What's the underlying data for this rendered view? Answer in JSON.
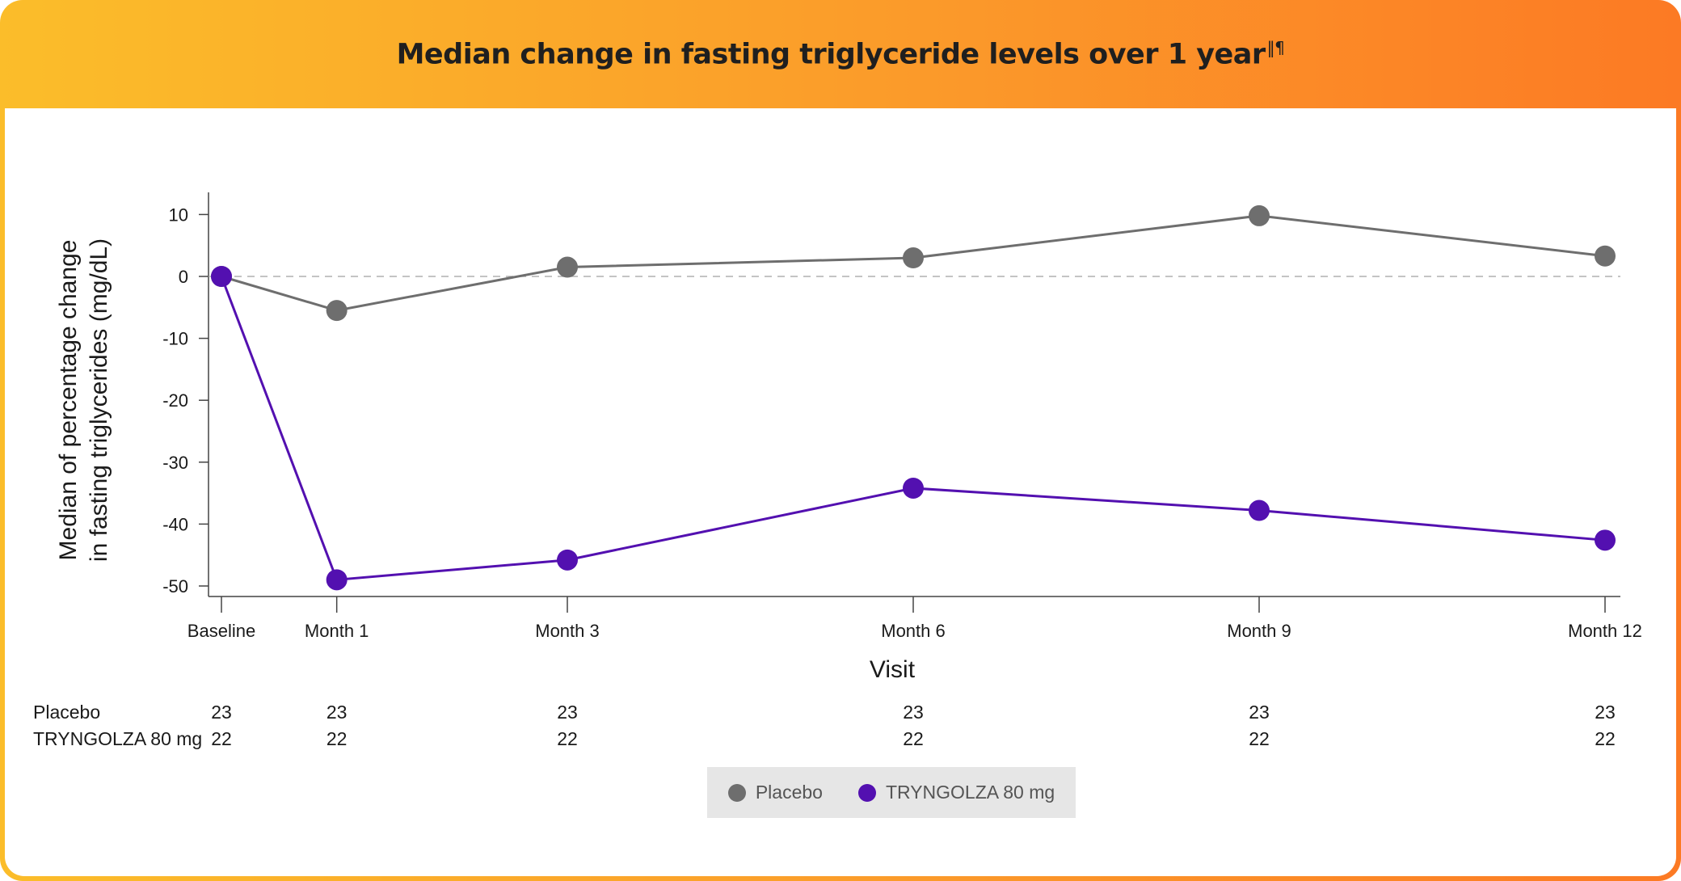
{
  "header": {
    "title": "Median change in fasting triglyceride levels over 1 year",
    "footnote_marks": "‖¶"
  },
  "colors": {
    "placebo": "#6e6e6e",
    "treatment": "#5310b0"
  },
  "chart_data": {
    "type": "line",
    "categories": [
      "Baseline",
      "Month 1",
      "Month 3",
      "Month 6",
      "Month 9",
      "Month 12"
    ],
    "x": [
      0,
      1,
      3,
      6,
      9,
      12
    ],
    "series": [
      {
        "name": "Placebo",
        "values": [
          0,
          -5.5,
          1.5,
          3,
          9.8,
          3.3
        ]
      },
      {
        "name": "TRYNGOLZA 80 mg",
        "values": [
          0,
          -49,
          -45.8,
          -34.2,
          -37.8,
          -42.6
        ]
      }
    ],
    "title": "Median change in fasting triglyceride levels over 1 year",
    "xlabel": "Visit",
    "ylabel_line1": "Median of percentage change",
    "ylabel_line2": "in fasting triglycerides (mg/dL)",
    "ylim": [
      -52,
      14
    ],
    "yticks": [
      10,
      0,
      -10,
      -20,
      -30,
      -40,
      -50
    ],
    "reference_line": 0,
    "grid": false,
    "legend_position": "bottom"
  },
  "risk_table": {
    "rows": [
      {
        "label": "Placebo",
        "values": [
          "23",
          "23",
          "23",
          "23",
          "23",
          "23"
        ]
      },
      {
        "label": "TRYNGOLZA 80 mg",
        "values": [
          "22",
          "22",
          "22",
          "22",
          "22",
          "22"
        ]
      }
    ]
  },
  "legend": {
    "items": [
      {
        "label": "Placebo",
        "color": "#6e6e6e"
      },
      {
        "label": "TRYNGOLZA 80 mg",
        "color": "#5310b0"
      }
    ]
  }
}
